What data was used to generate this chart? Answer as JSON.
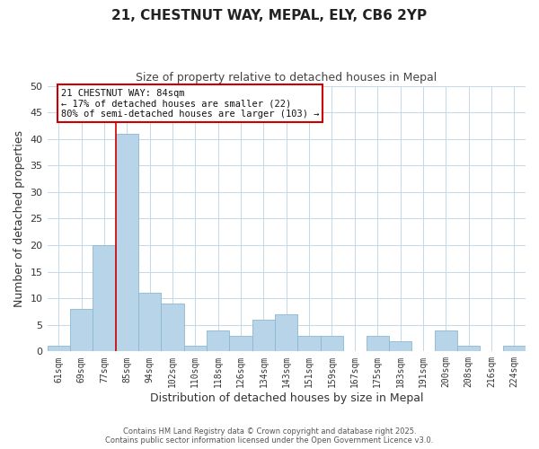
{
  "title": "21, CHESTNUT WAY, MEPAL, ELY, CB6 2YP",
  "subtitle": "Size of property relative to detached houses in Mepal",
  "xlabel": "Distribution of detached houses by size in Mepal",
  "ylabel": "Number of detached properties",
  "bar_labels": [
    "61sqm",
    "69sqm",
    "77sqm",
    "85sqm",
    "94sqm",
    "102sqm",
    "110sqm",
    "118sqm",
    "126sqm",
    "134sqm",
    "143sqm",
    "151sqm",
    "159sqm",
    "167sqm",
    "175sqm",
    "183sqm",
    "191sqm",
    "200sqm",
    "208sqm",
    "216sqm",
    "224sqm"
  ],
  "bar_values": [
    1,
    8,
    20,
    41,
    11,
    9,
    1,
    4,
    3,
    6,
    7,
    3,
    3,
    0,
    3,
    2,
    0,
    4,
    1,
    0,
    1
  ],
  "bar_color": "#b8d4e8",
  "bar_edge_color": "#8ab8d0",
  "vline_color": "#cc0000",
  "vline_x_index": 3,
  "annotation_title": "21 CHESTNUT WAY: 84sqm",
  "annotation_line1": "← 17% of detached houses are smaller (22)",
  "annotation_line2": "80% of semi-detached houses are larger (103) →",
  "annotation_box_color": "#ffffff",
  "annotation_box_edgecolor": "#cc0000",
  "ylim": [
    0,
    50
  ],
  "yticks": [
    0,
    5,
    10,
    15,
    20,
    25,
    30,
    35,
    40,
    45,
    50
  ],
  "background_color": "#ffffff",
  "grid_color": "#c5d8e8",
  "footer_line1": "Contains HM Land Registry data © Crown copyright and database right 2025.",
  "footer_line2": "Contains public sector information licensed under the Open Government Licence v3.0."
}
